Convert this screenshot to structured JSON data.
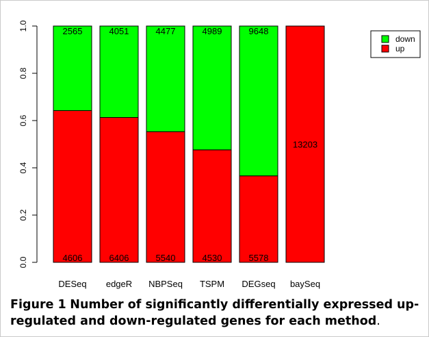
{
  "chart_data": {
    "type": "bar",
    "stacked": true,
    "categories": [
      "DESeq",
      "edgeR",
      "NBPSeq",
      "TSPM",
      "DEGseq",
      "baySeq"
    ],
    "series": [
      {
        "name": "up",
        "color": "#ff0000",
        "values": [
          0.642,
          0.613,
          0.553,
          0.476,
          0.366,
          1.0
        ],
        "labels": [
          "4606",
          "6406",
          "5540",
          "4530",
          "5578",
          "13203"
        ]
      },
      {
        "name": "down",
        "color": "#00ff00",
        "values": [
          0.358,
          0.387,
          0.447,
          0.524,
          0.634,
          0.0
        ],
        "labels": [
          "2565",
          "4051",
          "4477",
          "4989",
          "9648",
          ""
        ]
      }
    ],
    "ylim": [
      0,
      1
    ],
    "yticks": [
      "0.0",
      "0.2",
      "0.4",
      "0.6",
      "0.8",
      "1.0"
    ],
    "legend": {
      "placement": "top-right",
      "entries": [
        "down",
        "up"
      ]
    },
    "grid": false
  },
  "caption": {
    "label": "Figure 1",
    "text": "Number of significantly differentially expressed up-regulated and down-regulated genes for each method",
    "end": "."
  }
}
